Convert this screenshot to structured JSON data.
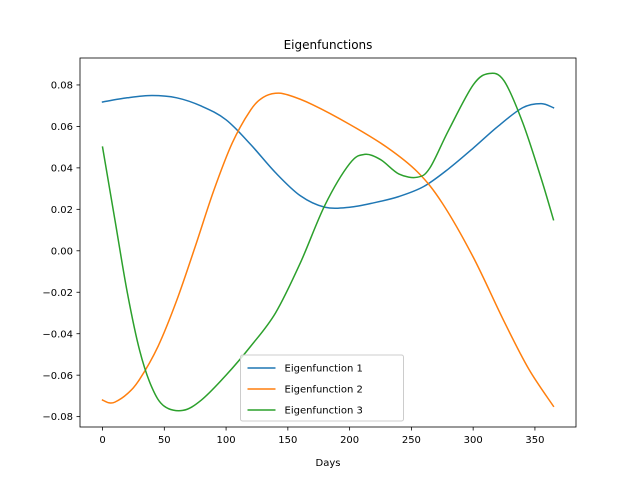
{
  "chart_data": {
    "type": "line",
    "title": "Eigenfunctions",
    "xlabel": "Days",
    "ylabel": "",
    "xlim": [
      -18.25,
      383.25
    ],
    "ylim": [
      -0.085,
      0.093
    ],
    "xticks": [
      0,
      50,
      100,
      150,
      200,
      250,
      300,
      350
    ],
    "xtick_labels": [
      "0",
      "50",
      "100",
      "150",
      "200",
      "250",
      "300",
      "350"
    ],
    "yticks": [
      -0.08,
      -0.06,
      -0.04,
      -0.02,
      0.0,
      0.02,
      0.04,
      0.06,
      0.08
    ],
    "ytick_labels": [
      "−0.08",
      "−0.06",
      "−0.04",
      "−0.02",
      "0.00",
      "0.02",
      "0.04",
      "0.06",
      "0.08"
    ],
    "grid": false,
    "legend_position": "lower-center",
    "series": [
      {
        "name": "Eigenfunction 1",
        "color": "#1f77b4",
        "x": [
          0,
          20,
          40,
          60,
          80,
          100,
          120,
          140,
          160,
          180,
          200,
          220,
          240,
          260,
          280,
          300,
          320,
          340,
          355,
          365
        ],
        "y": [
          0.0718,
          0.0738,
          0.0749,
          0.0738,
          0.0698,
          0.0632,
          0.0512,
          0.0377,
          0.0266,
          0.021,
          0.021,
          0.0232,
          0.0262,
          0.031,
          0.0395,
          0.0495,
          0.06,
          0.069,
          0.071,
          0.069
        ]
      },
      {
        "name": "Eigenfunction 2",
        "color": "#ff7f0e",
        "x": [
          0,
          5,
          10,
          20,
          30,
          45,
          60,
          75,
          90,
          105,
          120,
          130,
          140,
          150,
          170,
          200,
          230,
          255,
          275,
          300,
          325,
          345,
          365
        ],
        "y": [
          -0.072,
          -0.0733,
          -0.073,
          -0.069,
          -0.062,
          -0.046,
          -0.024,
          0.002,
          0.029,
          0.052,
          0.068,
          0.074,
          0.076,
          0.0752,
          0.0705,
          0.061,
          0.05,
          0.038,
          0.023,
          -0.003,
          -0.034,
          -0.057,
          -0.075
        ]
      },
      {
        "name": "Eigenfunction 3",
        "color": "#2ca02c",
        "x": [
          0,
          10,
          20,
          30,
          40,
          50,
          65,
          80,
          100,
          120,
          140,
          160,
          180,
          200,
          212,
          225,
          240,
          255,
          265,
          280,
          300,
          313,
          325,
          340,
          355,
          365
        ],
        "y": [
          0.05,
          0.015,
          -0.02,
          -0.048,
          -0.066,
          -0.075,
          -0.077,
          -0.072,
          -0.06,
          -0.046,
          -0.03,
          -0.006,
          0.022,
          0.042,
          0.0465,
          0.044,
          0.037,
          0.0355,
          0.04,
          0.058,
          0.08,
          0.0855,
          0.082,
          0.062,
          0.035,
          0.015
        ]
      }
    ]
  }
}
